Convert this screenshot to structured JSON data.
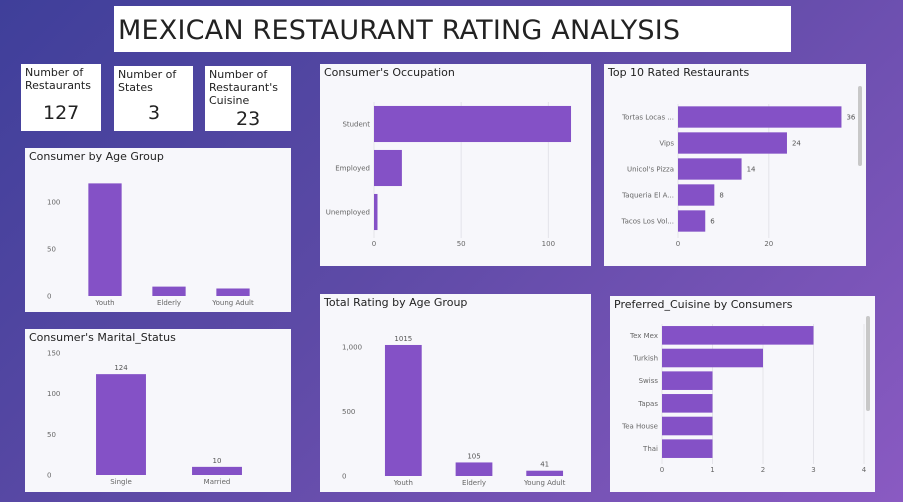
{
  "page_title": "MEXICAN RESTAURANT RATING ANALYSIS",
  "kpis": {
    "restaurants": {
      "label": "Number of Restaurants",
      "value": "127"
    },
    "states": {
      "label": "Number of States",
      "value": "3"
    },
    "cuisine": {
      "label": "Number of Restaurant's Cuisine",
      "value": "23"
    }
  },
  "colors": {
    "bar": "#8451c6",
    "grid": "#e4e4ea",
    "axis_text": "#666666"
  },
  "chart_data": [
    {
      "id": "age_group",
      "type": "bar",
      "title": "Consumer by Age Group",
      "categories": [
        "Youth",
        "Elderly",
        "Young Adult"
      ],
      "values": [
        120,
        10,
        8
      ],
      "ylim": [
        0,
        130
      ],
      "yticks": [
        0,
        50,
        100
      ],
      "ytick_labels": [
        "0",
        "50",
        "100"
      ],
      "data_labels": false,
      "grid": false
    },
    {
      "id": "marital",
      "type": "bar",
      "title": "Consumer's Marital_Status",
      "categories": [
        "Single",
        "Married"
      ],
      "values": [
        124,
        10
      ],
      "ylim": [
        0,
        150
      ],
      "yticks": [
        0,
        50,
        100,
        150
      ],
      "ytick_labels": [
        "0",
        "50",
        "100",
        "150"
      ],
      "data_labels": true,
      "grid": false
    },
    {
      "id": "occupation",
      "type": "hbar",
      "title": "Consumer's Occupation",
      "categories": [
        "Student",
        "Employed",
        "Unemployed"
      ],
      "values": [
        113,
        16,
        2
      ],
      "xlim": [
        0,
        117
      ],
      "xticks": [
        0,
        50,
        100
      ],
      "xtick_labels": [
        "0",
        "50",
        "100"
      ],
      "data_labels": false,
      "grid": true
    },
    {
      "id": "rating_age",
      "type": "bar",
      "title": "Total Rating by Age Group",
      "categories": [
        "Youth",
        "Elderly",
        "Young Adult"
      ],
      "values": [
        1015,
        105,
        41
      ],
      "ylim": [
        0,
        1100
      ],
      "yticks": [
        0,
        500,
        1000
      ],
      "ytick_labels": [
        "0",
        "500",
        "1,000"
      ],
      "data_labels": true,
      "data_label_text": [
        "1015",
        "105",
        "41"
      ],
      "grid": false
    },
    {
      "id": "top10",
      "type": "hbar",
      "title": "Top 10 Rated Restaurants",
      "categories": [
        "Tortas Locas ...",
        "Vips",
        "Unicol's Pizza",
        "Taqueria El A...",
        "Tacos Los Vol..."
      ],
      "values": [
        36,
        24,
        14,
        8,
        6
      ],
      "xlim": [
        0,
        37
      ],
      "xticks": [
        0,
        20
      ],
      "xtick_labels": [
        "0",
        "20"
      ],
      "data_labels": true,
      "grid": true
    },
    {
      "id": "cuisine",
      "type": "hbar",
      "title": "Preferred_Cuisine by Consumers",
      "categories": [
        "Tex Mex",
        "Turkish",
        "Swiss",
        "Tapas",
        "Tea House",
        "Thai"
      ],
      "values": [
        3,
        2,
        1,
        1,
        1,
        1
      ],
      "xlim": [
        0,
        4
      ],
      "xticks": [
        0,
        1,
        2,
        3,
        4
      ],
      "xtick_labels": [
        "0",
        "1",
        "2",
        "3",
        "4"
      ],
      "data_labels": false,
      "grid": true
    }
  ]
}
